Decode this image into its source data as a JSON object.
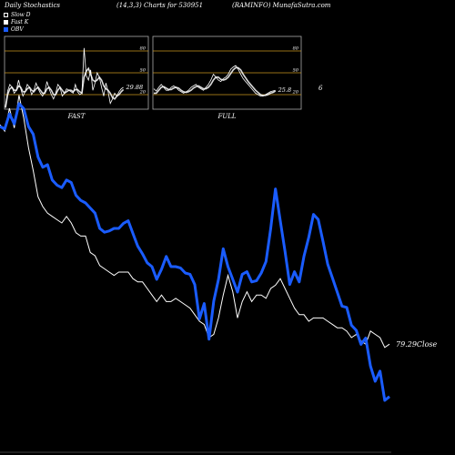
{
  "header": {
    "left": "Daily Stochastics",
    "middle": "(14,3,3) Charts for 530951",
    "right": "(RAMINFO) MunafaSutra.com"
  },
  "legend": [
    {
      "label": "Slow D",
      "color": "#ffffff"
    },
    {
      "label": "Fast K",
      "color": "#ffffff"
    },
    {
      "label": "OBV",
      "color": "#1a5cff"
    }
  ],
  "colors": {
    "background": "#000000",
    "obv": "#1a5cff",
    "close": "#ffffff",
    "panel_level": "#c8961e"
  },
  "side_label": "6",
  "chart_data": [
    {
      "type": "line",
      "title": "FAST",
      "ylim": [
        0,
        100
      ],
      "levels": [
        20,
        50,
        80
      ],
      "tick_labels": [
        "80",
        "50",
        "20"
      ],
      "last_value_label": "29.88",
      "series": [
        {
          "name": "Fast K",
          "values": [
            3,
            25,
            34,
            30,
            22,
            26,
            40,
            28,
            18,
            24,
            34,
            30,
            20,
            26,
            36,
            28,
            22,
            18,
            24,
            38,
            28,
            20,
            14,
            22,
            34,
            30,
            18,
            22,
            28,
            26,
            24,
            22,
            34,
            24,
            20,
            22,
            84,
            46,
            40,
            54,
            26,
            36,
            50,
            44,
            30,
            18,
            36,
            24,
            8,
            14,
            22,
            18,
            24,
            28,
            30
          ]
        },
        {
          "name": "Slow D",
          "values": [
            2,
            20,
            28,
            30,
            26,
            26,
            32,
            30,
            24,
            24,
            28,
            30,
            26,
            24,
            28,
            30,
            26,
            22,
            22,
            28,
            30,
            26,
            20,
            20,
            26,
            30,
            26,
            22,
            24,
            26,
            26,
            24,
            27,
            27,
            24,
            22,
            44,
            52,
            56,
            48,
            40,
            38,
            40,
            44,
            40,
            32,
            28,
            26,
            22,
            16,
            14,
            18,
            20,
            24,
            27
          ]
        }
      ]
    },
    {
      "type": "line",
      "title": "FULL",
      "ylim": [
        0,
        100
      ],
      "levels": [
        20,
        50,
        80
      ],
      "tick_labels": [
        "80",
        "50",
        "20"
      ],
      "last_value_label": "25.8",
      "series": [
        {
          "name": "Full K",
          "values": [
            28,
            25,
            30,
            34,
            30,
            26,
            26,
            30,
            32,
            30,
            26,
            24,
            22,
            24,
            26,
            30,
            32,
            34,
            30,
            28,
            26,
            30,
            34,
            40,
            48,
            44,
            40,
            38,
            42,
            44,
            48,
            55,
            58,
            60,
            55,
            48,
            42,
            38,
            34,
            30,
            26,
            22,
            20,
            18,
            18,
            20,
            22,
            24,
            25,
            26
          ]
        },
        {
          "name": "Full D",
          "values": [
            22,
            22,
            26,
            30,
            31,
            29,
            27,
            27,
            29,
            30,
            29,
            26,
            24,
            23,
            24,
            26,
            29,
            31,
            32,
            30,
            28,
            28,
            30,
            34,
            40,
            44,
            44,
            41,
            40,
            41,
            44,
            49,
            54,
            57,
            57,
            54,
            48,
            43,
            38,
            34,
            30,
            26,
            23,
            20,
            19,
            19,
            20,
            22,
            23,
            25
          ]
        }
      ]
    },
    {
      "type": "line",
      "title": "",
      "last_close_label": "79.29",
      "close_word": "Close",
      "series": [
        {
          "name": "OBV",
          "values": [
            140,
            138,
            150,
            142,
            158,
            154,
            140,
            134,
            116,
            108,
            110,
            98,
            94,
            92,
            98,
            96,
            86,
            82,
            80,
            76,
            72,
            60,
            57,
            58,
            60,
            60,
            64,
            66,
            56,
            46,
            40,
            33,
            30,
            20,
            28,
            38,
            30,
            30,
            29,
            25,
            24,
            16,
            -11,
            1,
            -27,
            3,
            20,
            44,
            30,
            20,
            10,
            24,
            26,
            18,
            19,
            25,
            34,
            60,
            91,
            66,
            42,
            16,
            26,
            18,
            38,
            53,
            71,
            67,
            50,
            32,
            21,
            10,
            -1,
            -2,
            -16,
            -20,
            -31,
            -26,
            -48,
            -60,
            -52,
            -75,
            -72
          ]
        },
        {
          "name": "Close",
          "values": [
            130,
            128,
            135,
            129,
            139,
            132,
            123,
            116,
            108,
            105,
            103,
            102,
            101,
            100,
            102,
            100,
            97,
            96,
            96,
            91,
            90,
            87,
            86,
            85,
            84,
            85,
            85,
            85,
            83,
            82,
            82,
            80,
            78,
            76,
            78,
            76,
            76,
            77,
            76,
            75,
            74,
            72,
            70,
            69,
            65,
            66,
            71,
            78,
            84,
            79,
            71,
            76,
            79,
            76,
            78,
            78,
            77,
            80,
            81,
            83,
            80,
            77,
            74,
            72,
            72,
            70,
            71,
            71,
            71,
            70,
            69,
            68,
            68,
            67,
            65,
            66,
            64,
            63,
            67,
            66,
            65,
            62,
            63
          ]
        }
      ]
    }
  ]
}
